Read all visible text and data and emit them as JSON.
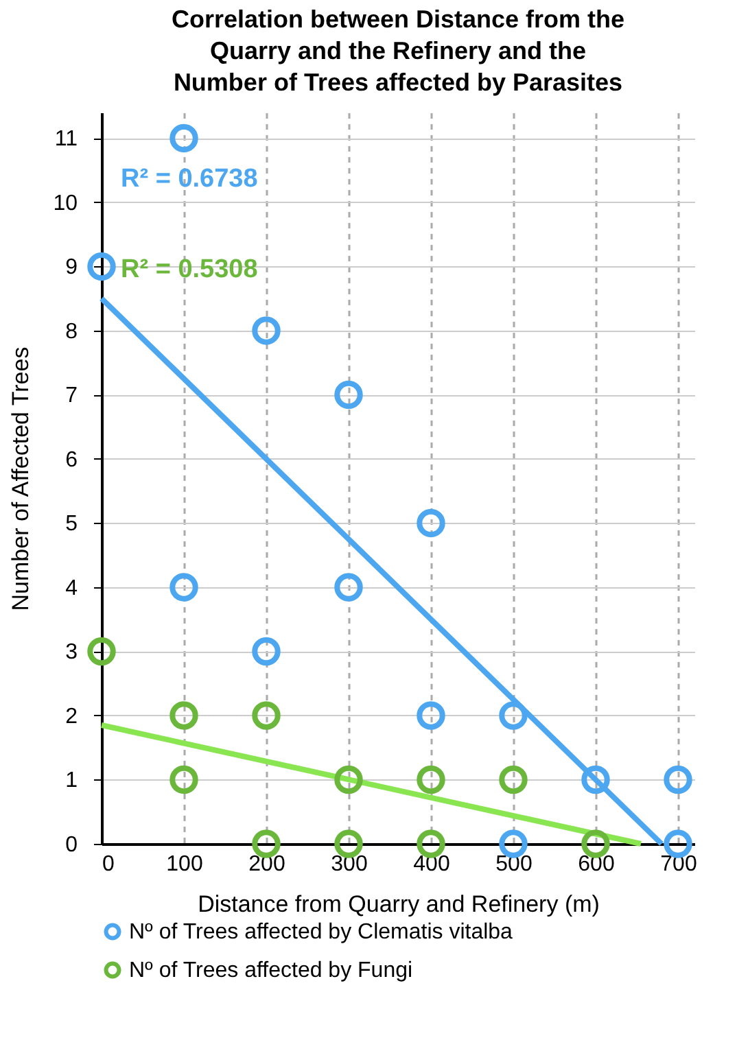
{
  "chart_data": {
    "type": "scatter",
    "title": "Correlation between Distance from the Quarry and the Refinery and the Number of Trees affected by Parasites",
    "xlabel": "Distance from Quarry and Refinery (m)",
    "ylabel": "Number of Affected Trees",
    "xlim": [
      0,
      720
    ],
    "xticks": [
      0,
      100,
      200,
      300,
      400,
      500,
      600,
      700
    ],
    "ylim": [
      0,
      11.4
    ],
    "yticks": [
      0,
      1,
      2,
      3,
      4,
      5,
      6,
      7,
      8,
      9,
      10,
      11
    ],
    "grid": true,
    "legend": "bottom",
    "marker": "circle",
    "annotations": [
      "R² = 0.6738",
      "R² = 0.5308"
    ],
    "series": [
      {
        "name": "Nº of Trees affected by Clematis vitalba",
        "color": "#4da6f0",
        "x": [
          0,
          100,
          100,
          200,
          200,
          300,
          300,
          400,
          400,
          500,
          500,
          600,
          700,
          700
        ],
        "values": [
          9,
          11,
          4,
          8,
          3,
          7,
          4,
          5,
          2,
          2,
          0,
          1,
          1,
          0
        ]
      },
      {
        "name": "Nº of Trees affected by Fungi",
        "color": "#6ab73c",
        "x": [
          0,
          100,
          100,
          200,
          200,
          300,
          300,
          400,
          400,
          500,
          600
        ],
        "values": [
          3,
          2,
          1,
          2,
          0,
          1,
          0,
          1,
          0,
          1,
          0
        ]
      },
      {
        "type": "line",
        "marker": "none",
        "color": "#4da6f0",
        "x": [
          0,
          680
        ],
        "values": [
          8.5,
          0
        ]
      },
      {
        "type": "line",
        "marker": "none",
        "color": "#8ae650",
        "x": [
          0,
          655
        ],
        "values": [
          1.85,
          0
        ]
      }
    ]
  }
}
